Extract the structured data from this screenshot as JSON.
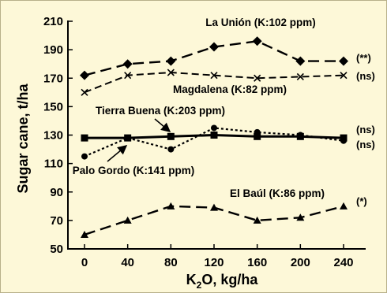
{
  "chart_data": {
    "type": "line",
    "title": "",
    "xlabel": "K2O, kg/ha",
    "xlabel_parts": {
      "main": "K",
      "sub": "2",
      "rest": "O, kg/ha"
    },
    "ylabel": "Sugar cane, t/ha",
    "x": [
      0,
      40,
      80,
      120,
      160,
      200,
      240
    ],
    "xlim": [
      0,
      240
    ],
    "ylim": [
      50,
      210
    ],
    "yticks": [
      50,
      70,
      90,
      110,
      130,
      150,
      170,
      190,
      210
    ],
    "grid": false,
    "background": "#fdf8d8",
    "series": [
      {
        "name": "La Unión (K:102 ppm)",
        "significance": "(**)",
        "marker": "diamond",
        "dash": "long",
        "values": [
          172,
          180,
          182,
          192,
          196,
          182,
          182
        ]
      },
      {
        "name": "Magdalena (K:82 ppm)",
        "significance": "(ns)",
        "marker": "x",
        "dash": "medium",
        "values": [
          160,
          172,
          174,
          172,
          170,
          171,
          172
        ]
      },
      {
        "name": "Tierra Buena (K:203 ppm)",
        "significance": "(ns)",
        "marker": "square",
        "dash": "solid",
        "values": [
          128,
          128,
          129,
          130,
          129,
          129,
          128
        ]
      },
      {
        "name": "Palo Gordo (K:141 ppm)",
        "significance": "(ns)",
        "marker": "circle",
        "dash": "dotted",
        "values": [
          115,
          128,
          120,
          135,
          132,
          130,
          126
        ]
      },
      {
        "name": "El Baúl (K:86 ppm)",
        "significance": "(*)",
        "marker": "triangle",
        "dash": "long",
        "values": [
          60,
          70,
          80,
          79,
          70,
          72,
          80
        ]
      }
    ]
  }
}
